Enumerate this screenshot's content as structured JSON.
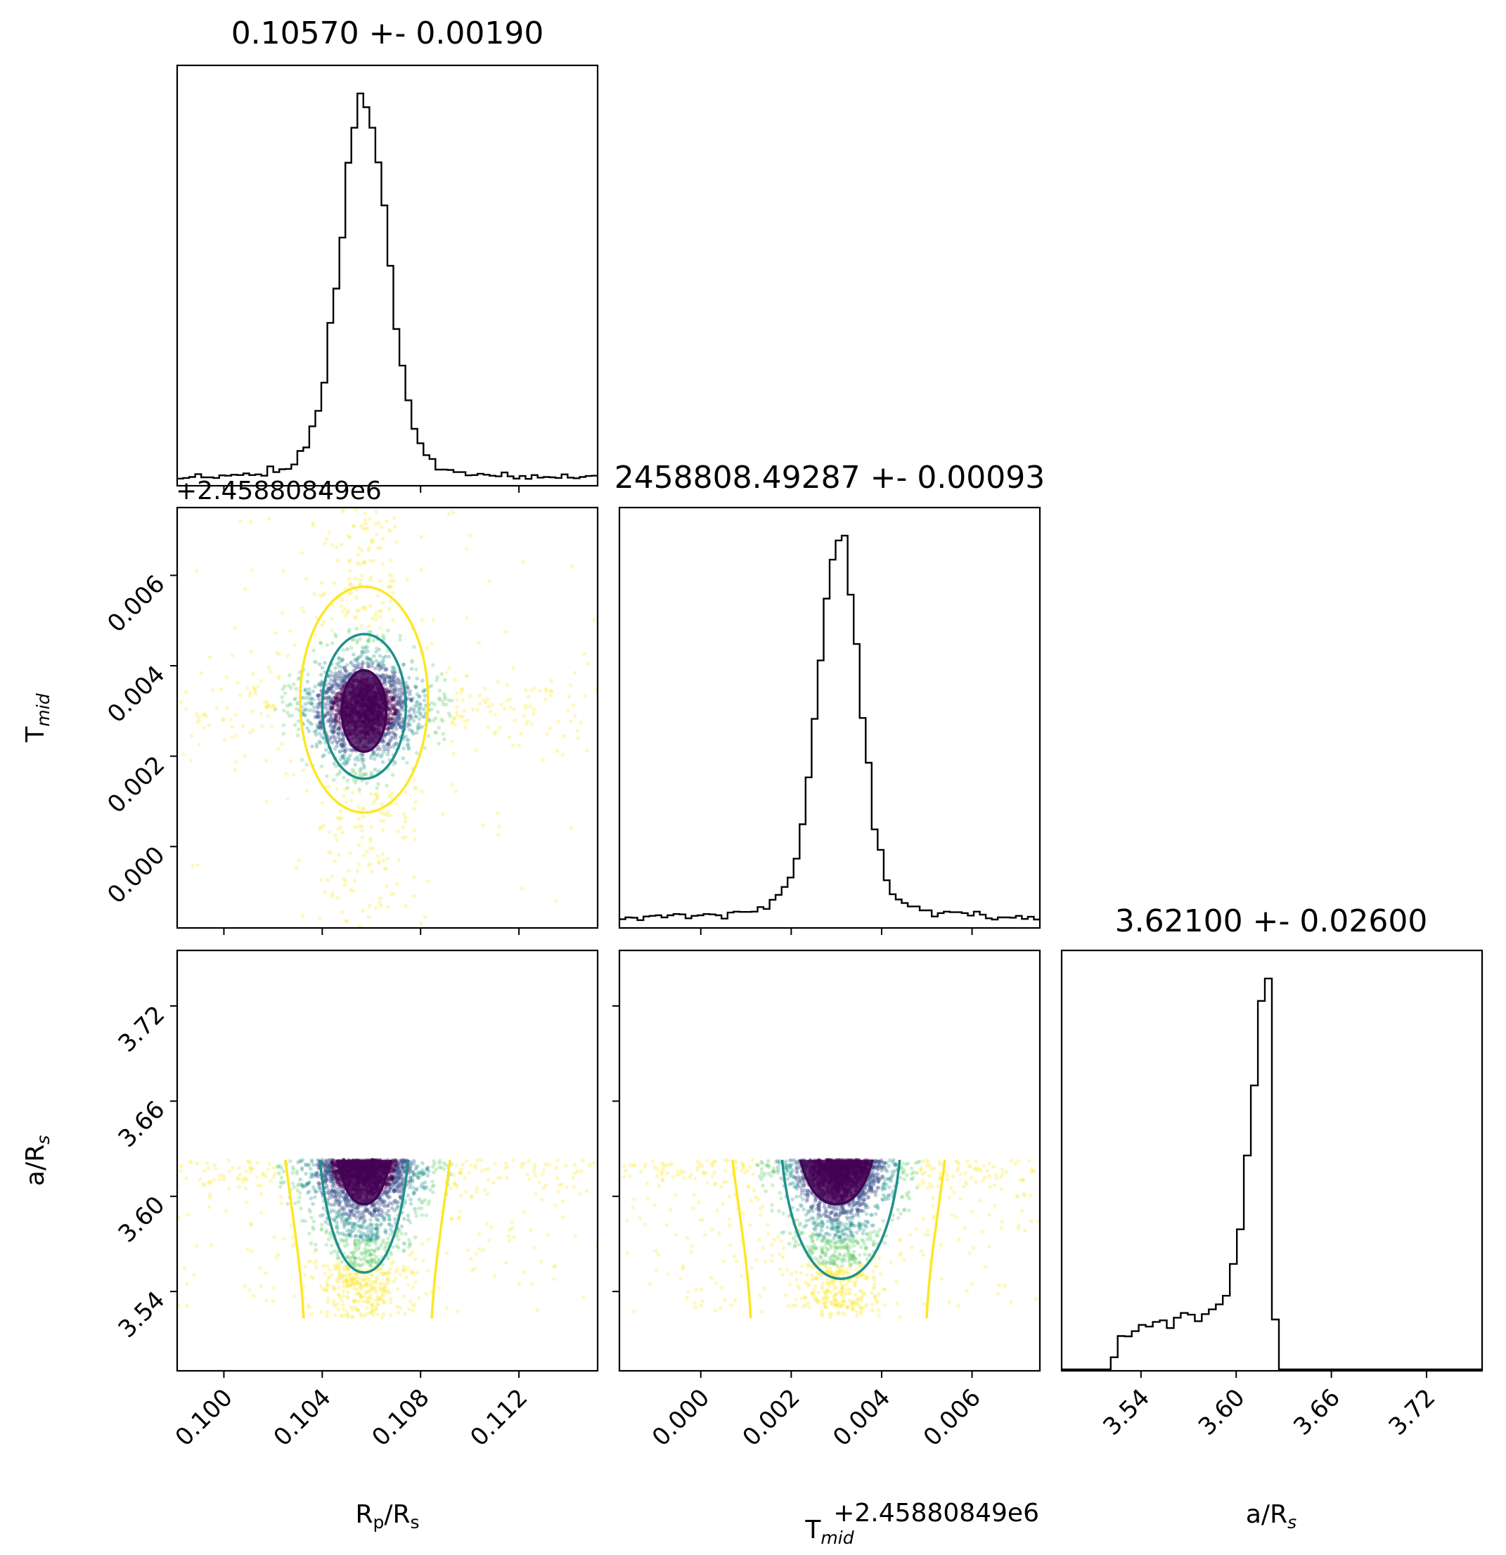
{
  "chart_data": {
    "type": "corner",
    "parameters": [
      {
        "label": "R",
        "sub_p": "p",
        "sep": "/R",
        "sub_s": "s"
      },
      {
        "label": "T",
        "sub": "mid"
      },
      {
        "label": "a/R",
        "sub": "s"
      }
    ],
    "titles": [
      "0.10570 +- 0.00190",
      "2458808.49287 +- 0.00093",
      "3.62100 +- 0.02600"
    ],
    "offset_text": "+2.45880849e6",
    "ranges": {
      "rp": [
        0.0981,
        0.1152
      ],
      "tmid": [
        -0.0018,
        0.0075
      ],
      "ars": [
        3.49,
        3.755
      ]
    },
    "ticks": {
      "rp": [
        "0.100",
        "0.104",
        "0.108",
        "0.112"
      ],
      "tmid": [
        "0.000",
        "0.002",
        "0.004",
        "0.006"
      ],
      "ars": [
        "3.54",
        "3.60",
        "3.66",
        "3.72"
      ]
    },
    "posteriors": {
      "rp": {
        "median": 0.1057,
        "sigma": 0.0019
      },
      "tmid": {
        "median": 0.00287,
        "sigma": 0.00093
      },
      "ars": {
        "median": 3.621,
        "sigma": 0.026,
        "lower_cutoff": 3.523,
        "upper_cutoff": 3.623
      }
    },
    "contour_colors": [
      "#fde725",
      "#21918c",
      "#440154"
    ],
    "histogram_color": "#000000"
  }
}
